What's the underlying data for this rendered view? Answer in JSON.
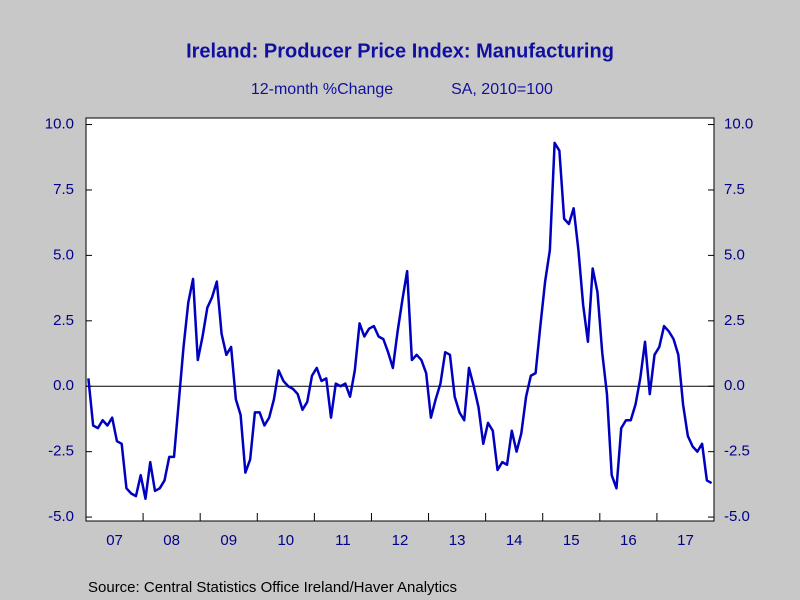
{
  "chart_data": {
    "type": "line",
    "title": "Ireland: Producer Price Index: Manufacturing",
    "subtitle": [
      "12-month %Change",
      "SA, 2010=100"
    ],
    "source": "Source:  Central Statistics Office Ireland/Haver Analytics",
    "categories": [
      null,
      null,
      null,
      null,
      null,
      null,
      "07",
      null,
      null,
      null,
      null,
      null,
      null,
      null,
      null,
      null,
      null,
      null,
      "08",
      null,
      null,
      null,
      null,
      null,
      null,
      null,
      null,
      null,
      null,
      null,
      "09",
      null,
      null,
      null,
      null,
      null,
      null,
      null,
      null,
      null,
      null,
      null,
      "10",
      null,
      null,
      null,
      null,
      null,
      null,
      null,
      null,
      null,
      null,
      null,
      "11",
      null,
      null,
      null,
      null,
      null,
      null,
      null,
      null,
      null,
      null,
      null,
      "12",
      null,
      null,
      null,
      null,
      null,
      null,
      null,
      null,
      null,
      null,
      null,
      "13",
      null,
      null,
      null,
      null,
      null,
      null,
      null,
      null,
      null,
      null,
      null,
      "14",
      null,
      null,
      null,
      null,
      null,
      null,
      null,
      null,
      null,
      null,
      null,
      "15",
      null,
      null,
      null,
      null,
      null,
      null,
      null,
      null,
      null,
      null,
      null,
      "16",
      null,
      null,
      null,
      null,
      null,
      null,
      null,
      null,
      null,
      null,
      null,
      "17",
      null,
      null,
      null,
      null,
      null
    ],
    "series": [
      {
        "name": "12-month %Change",
        "color": "#0000c0",
        "values": [
          0.3,
          -1.5,
          -1.6,
          -1.3,
          -1.5,
          -1.2,
          -2.1,
          -2.2,
          -3.9,
          -4.1,
          -4.2,
          -3.4,
          -4.3,
          -2.9,
          -4.0,
          -3.9,
          -3.6,
          -2.7,
          -2.7,
          -0.6,
          1.5,
          3.2,
          4.1,
          1.0,
          1.9,
          3.0,
          3.4,
          4.0,
          2.0,
          1.2,
          1.5,
          -0.5,
          -1.1,
          -3.3,
          -2.8,
          -1.0,
          -1.0,
          -1.5,
          -1.2,
          -0.5,
          0.6,
          0.2,
          0.0,
          -0.1,
          -0.3,
          -0.9,
          -0.6,
          0.4,
          0.7,
          0.2,
          0.3,
          -1.2,
          0.1,
          0.0,
          0.1,
          -0.4,
          0.6,
          2.4,
          1.9,
          2.2,
          2.3,
          1.9,
          1.8,
          1.3,
          0.7,
          2.1,
          3.3,
          4.4,
          1.0,
          1.2,
          1.0,
          0.5,
          -1.2,
          -0.5,
          0.1,
          1.3,
          1.2,
          -0.4,
          -1.0,
          -1.3,
          0.7,
          0.0,
          -0.8,
          -2.2,
          -1.4,
          -1.7,
          -3.2,
          -2.9,
          -3.0,
          -1.7,
          -2.5,
          -1.8,
          -0.4,
          0.4,
          0.5,
          2.3,
          4.0,
          5.2,
          9.3,
          9.0,
          6.4,
          6.2,
          6.8,
          5.2,
          3.1,
          1.7,
          4.5,
          3.6,
          1.3,
          -0.3,
          -3.4,
          -3.9,
          -1.6,
          -1.3,
          -1.3,
          -0.7,
          0.3,
          1.7,
          -0.3,
          1.2,
          1.5,
          2.3,
          2.1,
          1.8,
          1.2,
          -0.7,
          -1.9,
          -2.3,
          -2.5,
          -2.2,
          -3.6,
          -3.7
        ]
      }
    ],
    "ylim": [
      -5.15,
      10.25
    ],
    "yticks": [
      {
        "value": -5,
        "label": "-5.0"
      },
      {
        "value": -2.5,
        "label": "-2.5"
      },
      {
        "value": 0,
        "label": "0.0"
      },
      {
        "value": 2.5,
        "label": "2.5"
      },
      {
        "value": 5,
        "label": "5.0"
      },
      {
        "value": 7.5,
        "label": "7.5"
      },
      {
        "value": 10,
        "label": "10.0"
      }
    ]
  }
}
